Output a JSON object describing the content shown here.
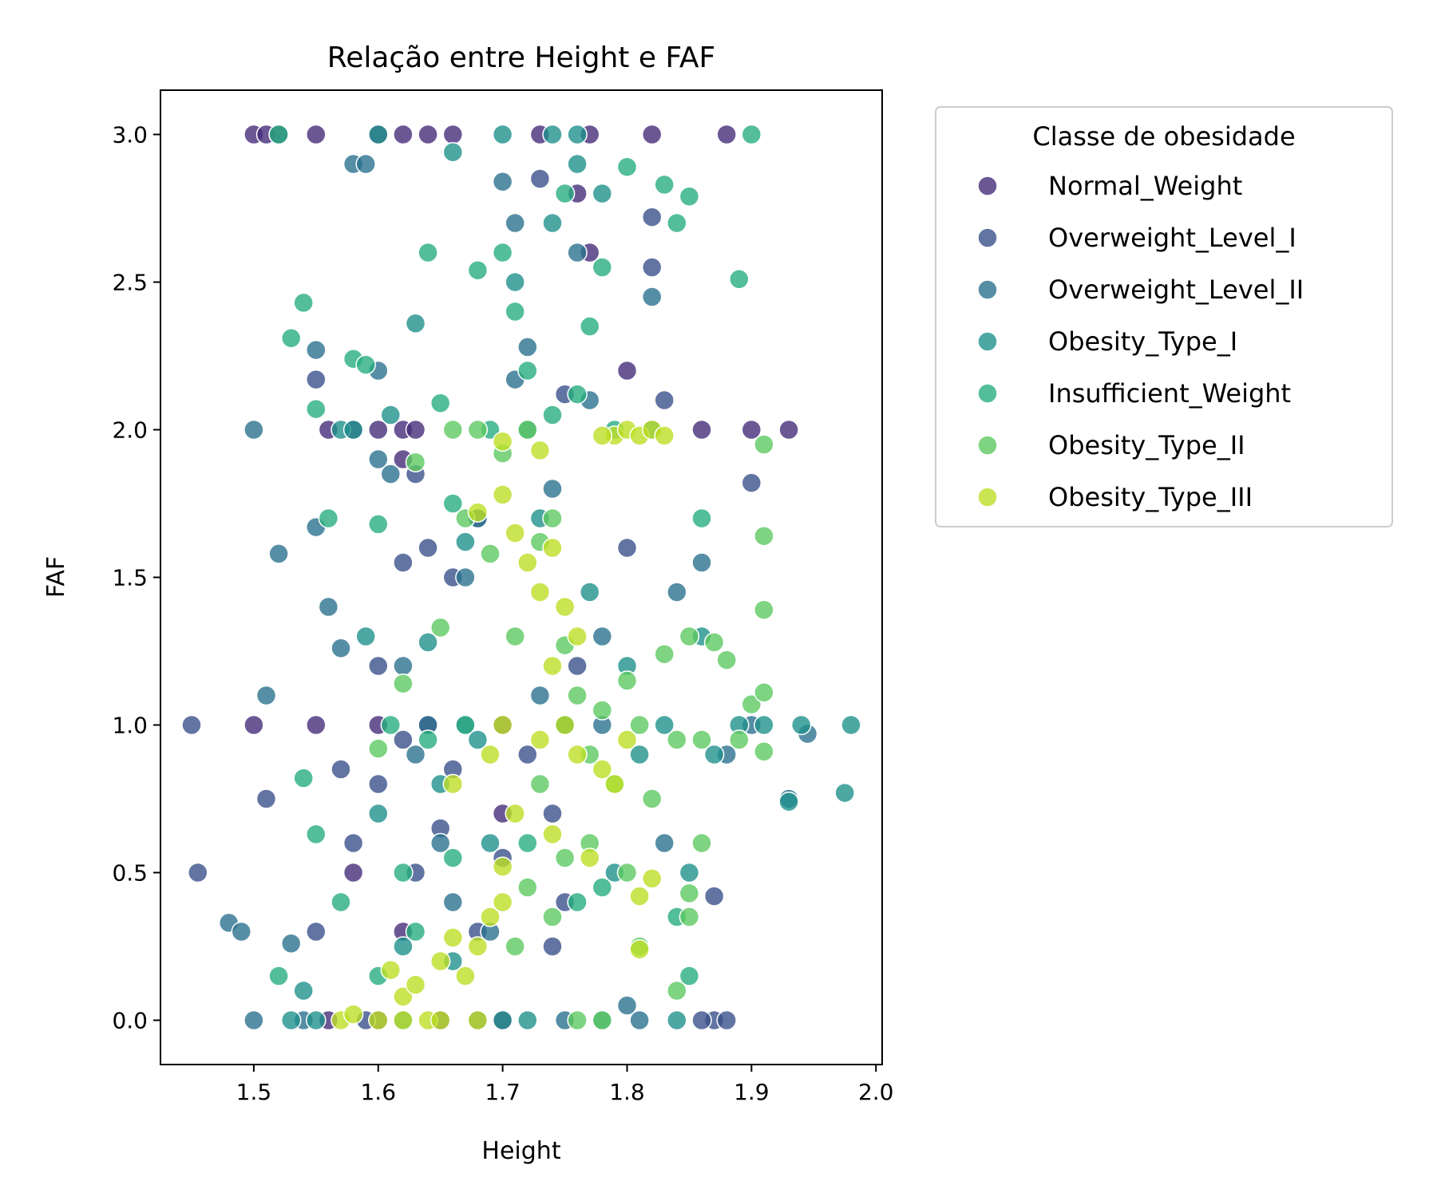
{
  "chart_data": {
    "type": "scatter",
    "title": "Relação entre Height e FAF",
    "xlabel": "Height",
    "ylabel": "FAF",
    "xlim": [
      1.425,
      2.005
    ],
    "ylim": [
      -0.15,
      3.15
    ],
    "xticks": [
      "1.5",
      "1.6",
      "1.7",
      "1.8",
      "1.9",
      "2.0"
    ],
    "yticks": [
      "0.0",
      "0.5",
      "1.0",
      "1.5",
      "2.0",
      "2.5",
      "3.0"
    ],
    "grid": false,
    "legend": {
      "title": "Classe de obesidade",
      "placement": "outside-upper-right"
    },
    "series": [
      {
        "name": "Normal_Weight",
        "color": "#472d7b",
        "points": [
          [
            1.5,
            3.0
          ],
          [
            1.51,
            3.0
          ],
          [
            1.52,
            3.0
          ],
          [
            1.55,
            3.0
          ],
          [
            1.6,
            3.0
          ],
          [
            1.62,
            3.0
          ],
          [
            1.64,
            3.0
          ],
          [
            1.66,
            3.0
          ],
          [
            1.73,
            3.0
          ],
          [
            1.77,
            3.0
          ],
          [
            1.82,
            3.0
          ],
          [
            1.88,
            3.0
          ],
          [
            1.56,
            2.0
          ],
          [
            1.58,
            2.0
          ],
          [
            1.6,
            2.0
          ],
          [
            1.62,
            2.0
          ],
          [
            1.63,
            2.0
          ],
          [
            1.86,
            2.0
          ],
          [
            1.93,
            2.0
          ],
          [
            1.9,
            2.0
          ],
          [
            1.5,
            1.0
          ],
          [
            1.55,
            1.0
          ],
          [
            1.6,
            1.0
          ],
          [
            1.64,
            1.0
          ],
          [
            1.7,
            1.0
          ],
          [
            1.75,
            1.0
          ],
          [
            1.56,
            0.0
          ],
          [
            1.6,
            0.0
          ],
          [
            1.65,
            0.0
          ],
          [
            1.7,
            0.0
          ],
          [
            1.58,
            0.5
          ],
          [
            1.62,
            0.3
          ],
          [
            1.7,
            0.7
          ],
          [
            1.76,
            2.8
          ],
          [
            1.77,
            2.6
          ],
          [
            1.8,
            2.2
          ],
          [
            1.62,
            1.9
          ]
        ]
      },
      {
        "name": "Overweight_Level_I",
        "color": "#3b518b",
        "points": [
          [
            1.45,
            1.0
          ],
          [
            1.455,
            0.5
          ],
          [
            1.51,
            0.75
          ],
          [
            1.55,
            0.3
          ],
          [
            1.58,
            0.6
          ],
          [
            1.6,
            0.8
          ],
          [
            1.62,
            0.95
          ],
          [
            1.63,
            0.5
          ],
          [
            1.65,
            0.65
          ],
          [
            1.66,
            0.85
          ],
          [
            1.68,
            0.3
          ],
          [
            1.7,
            0.55
          ],
          [
            1.72,
            0.9
          ],
          [
            1.74,
            0.25
          ],
          [
            1.75,
            0.4
          ],
          [
            1.6,
            1.2
          ],
          [
            1.62,
            1.55
          ],
          [
            1.64,
            1.6
          ],
          [
            1.66,
            1.5
          ],
          [
            1.68,
            1.7
          ],
          [
            1.82,
            2.55
          ],
          [
            1.82,
            2.72
          ],
          [
            1.83,
            2.1
          ],
          [
            1.8,
            1.6
          ],
          [
            1.87,
            0.42
          ],
          [
            1.87,
            0.0
          ],
          [
            1.88,
            0.0
          ],
          [
            1.86,
            0.0
          ],
          [
            1.9,
            1.82
          ],
          [
            1.73,
            2.85
          ],
          [
            1.75,
            2.12
          ],
          [
            1.63,
            1.85
          ],
          [
            1.55,
            2.17
          ],
          [
            1.57,
            0.85
          ],
          [
            1.59,
            0.0
          ],
          [
            1.68,
            0.0
          ],
          [
            1.74,
            0.7
          ],
          [
            1.76,
            1.2
          ]
        ]
      },
      {
        "name": "Overweight_Level_II",
        "color": "#2c728e",
        "points": [
          [
            1.48,
            0.33
          ],
          [
            1.49,
            0.3
          ],
          [
            1.5,
            0.0
          ],
          [
            1.5,
            2.0
          ],
          [
            1.51,
            1.1
          ],
          [
            1.52,
            1.58
          ],
          [
            1.53,
            0.26
          ],
          [
            1.54,
            0.0
          ],
          [
            1.55,
            2.27
          ],
          [
            1.55,
            1.67
          ],
          [
            1.56,
            1.4
          ],
          [
            1.57,
            1.26
          ],
          [
            1.58,
            2.9
          ],
          [
            1.59,
            2.9
          ],
          [
            1.6,
            2.2
          ],
          [
            1.6,
            1.9
          ],
          [
            1.61,
            1.85
          ],
          [
            1.62,
            1.2
          ],
          [
            1.63,
            0.9
          ],
          [
            1.64,
            1.0
          ],
          [
            1.65,
            0.6
          ],
          [
            1.66,
            0.4
          ],
          [
            1.67,
            1.5
          ],
          [
            1.68,
            1.7
          ],
          [
            1.7,
            2.84
          ],
          [
            1.71,
            2.7
          ],
          [
            1.72,
            2.28
          ],
          [
            1.73,
            1.1
          ],
          [
            1.74,
            1.8
          ],
          [
            1.76,
            2.6
          ],
          [
            1.77,
            2.1
          ],
          [
            1.78,
            1.3
          ],
          [
            1.8,
            0.05
          ],
          [
            1.81,
            0.0
          ],
          [
            1.82,
            2.45
          ],
          [
            1.83,
            0.6
          ],
          [
            1.84,
            1.45
          ],
          [
            1.86,
            1.55
          ],
          [
            1.88,
            0.9
          ],
          [
            1.9,
            1.0
          ],
          [
            1.93,
            0.75
          ],
          [
            1.945,
            0.97
          ],
          [
            1.71,
            2.17
          ],
          [
            1.67,
            1.0
          ],
          [
            1.69,
            0.3
          ],
          [
            1.75,
            0.0
          ],
          [
            1.78,
            1.0
          ]
        ]
      },
      {
        "name": "Obesity_Type_I",
        "color": "#21918c",
        "points": [
          [
            1.53,
            0.0
          ],
          [
            1.54,
            0.1
          ],
          [
            1.55,
            0.0
          ],
          [
            1.57,
            2.0
          ],
          [
            1.58,
            2.0
          ],
          [
            1.59,
            1.3
          ],
          [
            1.6,
            0.7
          ],
          [
            1.61,
            2.05
          ],
          [
            1.62,
            0.25
          ],
          [
            1.63,
            2.36
          ],
          [
            1.64,
            1.28
          ],
          [
            1.65,
            0.8
          ],
          [
            1.66,
            0.2
          ],
          [
            1.67,
            1.62
          ],
          [
            1.68,
            0.95
          ],
          [
            1.69,
            0.6
          ],
          [
            1.7,
            3.0
          ],
          [
            1.71,
            2.5
          ],
          [
            1.72,
            2.0
          ],
          [
            1.73,
            1.7
          ],
          [
            1.74,
            2.7
          ],
          [
            1.75,
            1.0
          ],
          [
            1.76,
            2.9
          ],
          [
            1.77,
            1.45
          ],
          [
            1.78,
            2.8
          ],
          [
            1.79,
            0.5
          ],
          [
            1.8,
            1.2
          ],
          [
            1.81,
            0.9
          ],
          [
            1.82,
            2.0
          ],
          [
            1.83,
            1.0
          ],
          [
            1.84,
            0.0
          ],
          [
            1.85,
            0.5
          ],
          [
            1.86,
            1.3
          ],
          [
            1.87,
            0.9
          ],
          [
            1.89,
            1.0
          ],
          [
            1.91,
            1.0
          ],
          [
            1.94,
            1.0
          ],
          [
            1.98,
            1.0
          ],
          [
            1.975,
            0.77
          ],
          [
            1.93,
            0.74
          ],
          [
            1.7,
            0.0
          ],
          [
            1.72,
            0.0
          ],
          [
            1.78,
            0.0
          ],
          [
            1.76,
            3.0
          ],
          [
            1.74,
            3.0
          ],
          [
            1.6,
            3.0
          ],
          [
            1.62,
            0.0
          ],
          [
            1.66,
            2.94
          ]
        ]
      },
      {
        "name": "Insufficient_Weight",
        "color": "#28ae80",
        "points": [
          [
            1.52,
            3.0
          ],
          [
            1.53,
            2.31
          ],
          [
            1.54,
            2.43
          ],
          [
            1.55,
            2.07
          ],
          [
            1.56,
            1.7
          ],
          [
            1.58,
            2.24
          ],
          [
            1.59,
            2.22
          ],
          [
            1.6,
            1.68
          ],
          [
            1.61,
            1.0
          ],
          [
            1.62,
            0.5
          ],
          [
            1.63,
            0.3
          ],
          [
            1.64,
            2.6
          ],
          [
            1.65,
            2.09
          ],
          [
            1.66,
            1.75
          ],
          [
            1.67,
            1.0
          ],
          [
            1.68,
            2.54
          ],
          [
            1.69,
            2.0
          ],
          [
            1.7,
            2.6
          ],
          [
            1.71,
            2.4
          ],
          [
            1.72,
            2.2
          ],
          [
            1.74,
            2.05
          ],
          [
            1.75,
            2.8
          ],
          [
            1.76,
            2.12
          ],
          [
            1.77,
            2.35
          ],
          [
            1.78,
            2.55
          ],
          [
            1.79,
            2.0
          ],
          [
            1.8,
            2.89
          ],
          [
            1.83,
            2.83
          ],
          [
            1.84,
            2.7
          ],
          [
            1.85,
            2.79
          ],
          [
            1.86,
            1.7
          ],
          [
            1.89,
            2.51
          ],
          [
            1.9,
            3.0
          ],
          [
            1.54,
            0.82
          ],
          [
            1.57,
            0.4
          ],
          [
            1.6,
            0.15
          ],
          [
            1.64,
            0.95
          ],
          [
            1.66,
            0.55
          ],
          [
            1.72,
            0.6
          ],
          [
            1.76,
            0.4
          ],
          [
            1.78,
            0.45
          ],
          [
            1.84,
            0.35
          ],
          [
            1.85,
            0.15
          ],
          [
            1.52,
            0.15
          ],
          [
            1.55,
            0.63
          ]
        ]
      },
      {
        "name": "Obesity_Type_II",
        "color": "#5ec962",
        "points": [
          [
            1.6,
            0.92
          ],
          [
            1.62,
            1.14
          ],
          [
            1.63,
            1.89
          ],
          [
            1.65,
            1.33
          ],
          [
            1.66,
            2.0
          ],
          [
            1.67,
            1.7
          ],
          [
            1.68,
            2.0
          ],
          [
            1.69,
            1.58
          ],
          [
            1.7,
            1.92
          ],
          [
            1.71,
            1.3
          ],
          [
            1.72,
            2.0
          ],
          [
            1.73,
            1.62
          ],
          [
            1.74,
            1.7
          ],
          [
            1.75,
            1.27
          ],
          [
            1.76,
            1.1
          ],
          [
            1.77,
            0.9
          ],
          [
            1.78,
            1.05
          ],
          [
            1.79,
            0.8
          ],
          [
            1.8,
            1.15
          ],
          [
            1.81,
            1.0
          ],
          [
            1.82,
            0.75
          ],
          [
            1.83,
            1.24
          ],
          [
            1.84,
            0.95
          ],
          [
            1.85,
            1.3
          ],
          [
            1.86,
            0.95
          ],
          [
            1.87,
            1.28
          ],
          [
            1.88,
            1.22
          ],
          [
            1.89,
            0.95
          ],
          [
            1.9,
            1.07
          ],
          [
            1.91,
            1.11
          ],
          [
            1.91,
            1.95
          ],
          [
            1.91,
            1.64
          ],
          [
            1.91,
            1.39
          ],
          [
            1.91,
            0.91
          ],
          [
            1.86,
            0.6
          ],
          [
            1.85,
            0.43
          ],
          [
            1.85,
            0.35
          ],
          [
            1.84,
            0.1
          ],
          [
            1.76,
            0.0
          ],
          [
            1.78,
            0.0
          ],
          [
            1.8,
            0.5
          ],
          [
            1.81,
            0.25
          ],
          [
            1.77,
            0.6
          ],
          [
            1.75,
            0.55
          ],
          [
            1.74,
            0.35
          ],
          [
            1.73,
            0.8
          ],
          [
            1.72,
            0.45
          ],
          [
            1.71,
            0.25
          ]
        ]
      },
      {
        "name": "Obesity_Type_III",
        "color": "#bddf26",
        "points": [
          [
            1.57,
            0.0
          ],
          [
            1.58,
            0.02
          ],
          [
            1.6,
            0.0
          ],
          [
            1.61,
            0.17
          ],
          [
            1.62,
            0.08
          ],
          [
            1.63,
            0.12
          ],
          [
            1.64,
            0.0
          ],
          [
            1.65,
            0.2
          ],
          [
            1.66,
            0.28
          ],
          [
            1.67,
            0.15
          ],
          [
            1.68,
            0.25
          ],
          [
            1.69,
            0.35
          ],
          [
            1.7,
            0.4
          ],
          [
            1.7,
            0.52
          ],
          [
            1.69,
            0.9
          ],
          [
            1.68,
            1.72
          ],
          [
            1.7,
            1.78
          ],
          [
            1.71,
            1.65
          ],
          [
            1.72,
            1.55
          ],
          [
            1.73,
            1.45
          ],
          [
            1.74,
            1.6
          ],
          [
            1.75,
            1.4
          ],
          [
            1.76,
            1.3
          ],
          [
            1.74,
            1.2
          ],
          [
            1.75,
            1.0
          ],
          [
            1.73,
            0.95
          ],
          [
            1.74,
            0.63
          ],
          [
            1.76,
            0.9
          ],
          [
            1.77,
            0.55
          ],
          [
            1.78,
            0.85
          ],
          [
            1.79,
            0.8
          ],
          [
            1.8,
            0.95
          ],
          [
            1.81,
            0.42
          ],
          [
            1.81,
            0.24
          ],
          [
            1.82,
            0.48
          ],
          [
            1.79,
            1.98
          ],
          [
            1.8,
            2.0
          ],
          [
            1.81,
            1.98
          ],
          [
            1.82,
            2.0
          ],
          [
            1.83,
            1.98
          ],
          [
            1.78,
            1.98
          ],
          [
            1.73,
            1.93
          ],
          [
            1.7,
            1.96
          ],
          [
            1.66,
            0.8
          ],
          [
            1.7,
            1.0
          ],
          [
            1.71,
            0.7
          ],
          [
            1.68,
            0.0
          ],
          [
            1.62,
            0.0
          ],
          [
            1.65,
            0.0
          ]
        ]
      }
    ]
  }
}
